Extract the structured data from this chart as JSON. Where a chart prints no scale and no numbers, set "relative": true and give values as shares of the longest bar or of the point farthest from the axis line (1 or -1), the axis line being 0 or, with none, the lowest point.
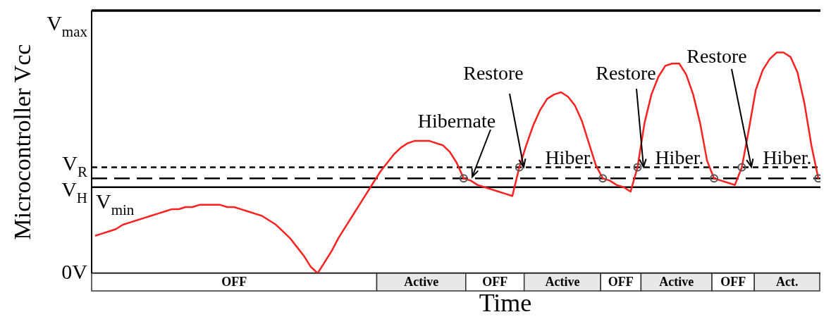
{
  "chart_data": {
    "type": "line",
    "relative": true,
    "xlabel": "Time",
    "ylabel": "Microcontroller Vcc",
    "categories": [
      null,
      null,
      null,
      null,
      null,
      null,
      null,
      null,
      null,
      null,
      null,
      null,
      null,
      null,
      null,
      null,
      null,
      null,
      null,
      null,
      null,
      null,
      null,
      null,
      null,
      null,
      null,
      null,
      null,
      null,
      null,
      null,
      null,
      null,
      null,
      null,
      null,
      null,
      null,
      null,
      null,
      null,
      null,
      null,
      null,
      null,
      null,
      null,
      null,
      null,
      null,
      null,
      null,
      null,
      null,
      null,
      null,
      null,
      null,
      null,
      null,
      null,
      null,
      null,
      null,
      null,
      null,
      null,
      null,
      null,
      null,
      null,
      null,
      null,
      null,
      null,
      null,
      null,
      null,
      null,
      null,
      null,
      null,
      null,
      null,
      null,
      null,
      null,
      null,
      null,
      null,
      null,
      null,
      null,
      null,
      null,
      null,
      null,
      null,
      null,
      null,
      null,
      null,
      null,
      null
    ],
    "series": [
      {
        "color": "#ff2020",
        "values": [
          0.17,
          0.18,
          0.19,
          0.2,
          0.22,
          0.23,
          0.24,
          0.25,
          0.26,
          0.27,
          0.28,
          0.29,
          0.29,
          0.3,
          0.3,
          0.31,
          0.31,
          0.31,
          0.31,
          0.3,
          0.3,
          0.29,
          0.28,
          0.27,
          0.26,
          0.24,
          0.22,
          0.19,
          0.16,
          0.12,
          0.08,
          0.03,
          0,
          0.05,
          0.1,
          0.16,
          0.21,
          0.26,
          0.31,
          0.36,
          0.41,
          0.46,
          0.5,
          0.54,
          0.57,
          0.59,
          0.6,
          0.6,
          0.6,
          0.59,
          0.58,
          0.55,
          0.5,
          0.43,
          0.42,
          0.4,
          0.39,
          0.38,
          0.37,
          0.36,
          0.35,
          0.48,
          0.58,
          0.67,
          0.74,
          0.79,
          0.81,
          0.82,
          0.8,
          0.76,
          0.69,
          0.59,
          0.49,
          0.43,
          0.42,
          0.4,
          0.39,
          0.37,
          0.48,
          0.68,
          0.81,
          0.89,
          0.94,
          0.95,
          0.95,
          0.9,
          0.81,
          0.68,
          0.51,
          0.43,
          0.42,
          0.41,
          0.4,
          0.48,
          0.65,
          0.83,
          0.92,
          0.97,
          1.0,
          1.0,
          0.98,
          0.91,
          0.77,
          0.58,
          0.43
        ]
      }
    ],
    "ref_lines": [
      {
        "axis": "y",
        "value": 1.19,
        "label": "V$_{max}$",
        "line_style": "solid",
        "color": "#000000"
      },
      {
        "axis": "y",
        "value": 0.48,
        "label": "V$_{R}$",
        "line_style": "dotted",
        "color": "#000000"
      },
      {
        "axis": "y",
        "value": 0.43,
        "label": "V$_{H}$",
        "line_style": "dashed",
        "color": "#000000"
      },
      {
        "axis": "y",
        "value": 0.39,
        "label": "V$_{min}$",
        "line_style": "solid",
        "color": "#000000"
      },
      {
        "axis": "y",
        "value": 0,
        "label": "0V",
        "line_style": "solid",
        "color": "#000000"
      }
    ],
    "annotations": [
      "Hibernate",
      "Restore",
      "Hiber.",
      "Restore",
      "Hiber.",
      "Restore",
      "Hiber.",
      "OFF",
      "Active",
      "OFF",
      "Active",
      "OFF",
      "Active",
      "OFF",
      "Act."
    ]
  }
}
